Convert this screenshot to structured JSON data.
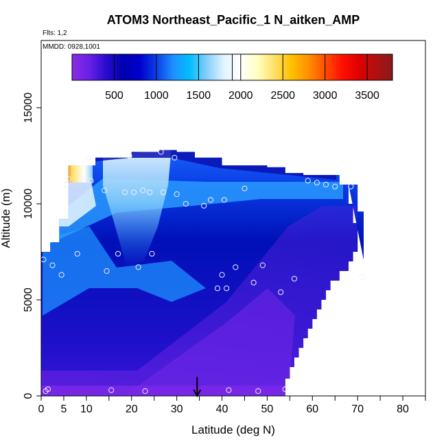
{
  "chart_data": {
    "type": "heatmap",
    "title": "ATOM3 Northeast_Pacific_1 N_aitken_AMP",
    "flights_label": "Flts: 1,2",
    "dates_label": "MMDD: 0928,1001",
    "xlabel": "Latitude (deg N)",
    "ylabel": "Altitude (m)",
    "xlim": [
      0,
      85
    ],
    "ylim": [
      0,
      18500
    ],
    "x_ticks_major": [
      0,
      5,
      10,
      20,
      30,
      40,
      50,
      60,
      70,
      80
    ],
    "x_ticks_minor": [
      15,
      25,
      35,
      45,
      55,
      65,
      75,
      85
    ],
    "y_ticks": [
      0,
      5000,
      10000,
      15000
    ],
    "colorbar": {
      "min": 0,
      "max": 3800,
      "ticks": [
        500,
        1000,
        1500,
        2000,
        2500,
        3000,
        3500
      ],
      "colors": [
        "#8a2be2",
        "#6a20e6",
        "#2a0cd0",
        "#0000b0",
        "#0000cd",
        "#0a3ee6",
        "#1e90ff",
        "#00bfff",
        "#87cefa",
        "#e0f4ff",
        "#ffffff",
        "#ffffc0",
        "#ffe066",
        "#ffc000",
        "#ff9000",
        "#ff5000",
        "#ff1000",
        "#e00000",
        "#b01010",
        "#8b1a1a"
      ]
    },
    "region_boundary": {
      "latitudes": [
        0,
        2,
        4,
        6,
        8,
        10,
        12,
        14,
        16,
        18,
        20,
        22,
        24,
        26,
        28,
        30,
        32,
        34,
        36,
        38,
        40,
        42,
        44,
        46,
        48,
        50,
        52,
        54,
        56,
        58,
        60,
        62,
        64,
        66,
        68,
        70,
        72
      ],
      "top_altitude_m": [
        7500,
        8000,
        9200,
        12000,
        12000,
        12000,
        12400,
        12400,
        12400,
        12400,
        12700,
        12700,
        12700,
        12800,
        12800,
        12700,
        12700,
        12400,
        12400,
        12400,
        12000,
        12000,
        12000,
        12000,
        12000,
        11900,
        11900,
        11600,
        11600,
        11500,
        11500,
        11500,
        11500,
        11000,
        11000,
        9600,
        6300
      ],
      "bottom_altitude_m": [
        0,
        0,
        0,
        0,
        0,
        0,
        0,
        0,
        0,
        0,
        0,
        0,
        0,
        0,
        0,
        0,
        0,
        0,
        0,
        0,
        0,
        0,
        0,
        0,
        0,
        0,
        0,
        0,
        0,
        0,
        0,
        0,
        0,
        0,
        0,
        0,
        0
      ],
      "right_edge_altitudes_m": [
        0,
        900,
        1500,
        2000,
        2500,
        3000,
        3500,
        4000,
        4500,
        5000,
        5500,
        6000,
        6500,
        7000,
        7500,
        8000,
        9000,
        10000,
        11000
      ],
      "right_edge_latitudes": [
        53,
        54,
        55,
        56,
        57,
        58,
        59,
        60,
        61,
        62,
        63,
        64,
        66,
        68,
        69,
        70,
        70,
        69,
        68
      ]
    },
    "sample_points": [
      {
        "lat": 0.5,
        "alt_m": 7100
      },
      {
        "lat": 1,
        "alt_m": 250
      },
      {
        "lat": 1.5,
        "alt_m": 350
      },
      {
        "lat": 2.5,
        "alt_m": 6800
      },
      {
        "lat": 4.5,
        "alt_m": 6300
      },
      {
        "lat": 5.5,
        "alt_m": 11000
      },
      {
        "lat": 6,
        "alt_m": 11300
      },
      {
        "lat": 9,
        "alt_m": 11300
      },
      {
        "lat": 8,
        "alt_m": 7400
      },
      {
        "lat": 10.5,
        "alt_m": 12400
      },
      {
        "lat": 11,
        "alt_m": 11200
      },
      {
        "lat": 14,
        "alt_m": 10700
      },
      {
        "lat": 14.5,
        "alt_m": 6500
      },
      {
        "lat": 15.5,
        "alt_m": 300
      },
      {
        "lat": 17,
        "alt_m": 7400
      },
      {
        "lat": 18.5,
        "alt_m": 10600
      },
      {
        "lat": 19.5,
        "alt_m": 12500
      },
      {
        "lat": 20.5,
        "alt_m": 10600
      },
      {
        "lat": 21.5,
        "alt_m": 6700
      },
      {
        "lat": 22.5,
        "alt_m": 10700
      },
      {
        "lat": 23,
        "alt_m": 250
      },
      {
        "lat": 24,
        "alt_m": 10600
      },
      {
        "lat": 24.5,
        "alt_m": 7400
      },
      {
        "lat": 26.5,
        "alt_m": 12700
      },
      {
        "lat": 27,
        "alt_m": 10600
      },
      {
        "lat": 29.5,
        "alt_m": 12400
      },
      {
        "lat": 30,
        "alt_m": 10500
      },
      {
        "lat": 32,
        "alt_m": 10000
      },
      {
        "lat": 36,
        "alt_m": 9900
      },
      {
        "lat": 37.5,
        "alt_m": 10200
      },
      {
        "lat": 39,
        "alt_m": 5600
      },
      {
        "lat": 40,
        "alt_m": 6300
      },
      {
        "lat": 40.5,
        "alt_m": 10200
      },
      {
        "lat": 41,
        "alt_m": 5600
      },
      {
        "lat": 41.5,
        "alt_m": 300
      },
      {
        "lat": 43,
        "alt_m": 6700
      },
      {
        "lat": 45,
        "alt_m": 10800
      },
      {
        "lat": 47,
        "alt_m": 5900
      },
      {
        "lat": 48,
        "alt_m": 250
      },
      {
        "lat": 49,
        "alt_m": 6800
      },
      {
        "lat": 53,
        "alt_m": 5400
      },
      {
        "lat": 54,
        "alt_m": 350
      },
      {
        "lat": 56,
        "alt_m": 6100
      },
      {
        "lat": 59,
        "alt_m": 11200
      },
      {
        "lat": 61,
        "alt_m": 11100
      },
      {
        "lat": 63,
        "alt_m": 11000
      },
      {
        "lat": 65,
        "alt_m": 10900
      },
      {
        "lat": 68.5,
        "alt_m": 10900
      },
      {
        "lat": 71,
        "alt_m": 6200
      }
    ],
    "arrow_marker": {
      "lat": 34.5,
      "alt_tip_m": 0,
      "alt_tail_m": 700
    }
  }
}
